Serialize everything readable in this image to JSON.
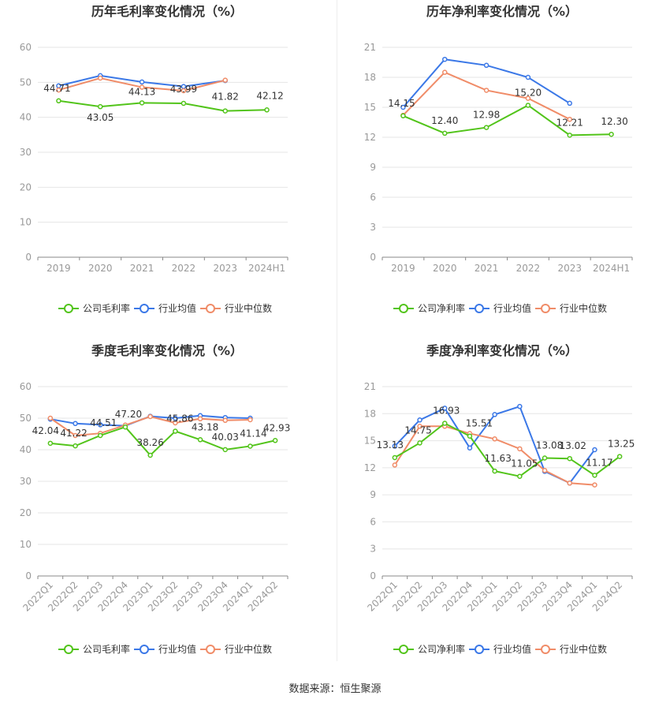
{
  "footer": {
    "source": "数据来源：恒生聚源"
  },
  "colors": {
    "company": "#52c41a",
    "industry_avg": "#3b78e7",
    "industry_median": "#f08c68",
    "grid": "#e6e6e6",
    "axis_text": "#999999",
    "title": "#333333"
  },
  "chart_data": [
    {
      "id": "annual-gross",
      "type": "line",
      "title": "历年毛利率变化情况（%）",
      "categories": [
        "2019",
        "2020",
        "2021",
        "2022",
        "2023",
        "2024H1"
      ],
      "ylim": [
        0,
        60
      ],
      "yticks": [
        0,
        10,
        20,
        30,
        40,
        50,
        60
      ],
      "legend": [
        "公司毛利率",
        "行业均值",
        "行业中位数"
      ],
      "series": [
        {
          "name": "公司毛利率",
          "role": "company",
          "values": [
            44.71,
            43.05,
            44.13,
            43.99,
            41.82,
            42.12
          ],
          "labels": [
            "44.71",
            "43.05",
            "44.13",
            "43.99",
            "41.82",
            "42.12"
          ]
        },
        {
          "name": "行业均值",
          "role": "industry_avg",
          "values": [
            49.0,
            51.9,
            50.1,
            48.8,
            50.5,
            null
          ]
        },
        {
          "name": "行业中位数",
          "role": "industry_median",
          "values": [
            47.8,
            51.2,
            48.6,
            47.6,
            50.6,
            null
          ]
        }
      ]
    },
    {
      "id": "annual-net",
      "type": "line",
      "title": "历年净利率变化情况（%）",
      "categories": [
        "2019",
        "2020",
        "2021",
        "2022",
        "2023",
        "2024H1"
      ],
      "ylim": [
        0,
        21
      ],
      "yticks": [
        0,
        3,
        6,
        9,
        12,
        15,
        18,
        21
      ],
      "legend": [
        "公司净利率",
        "行业均值",
        "行业中位数"
      ],
      "series": [
        {
          "name": "公司净利率",
          "role": "company",
          "values": [
            14.15,
            12.4,
            12.98,
            15.2,
            12.21,
            12.3
          ],
          "labels": [
            "14.15",
            "12.40",
            "12.98",
            "15.20",
            "12.21",
            "12.30"
          ]
        },
        {
          "name": "行业均值",
          "role": "industry_avg",
          "values": [
            15.0,
            19.8,
            19.2,
            18.0,
            15.4,
            null
          ]
        },
        {
          "name": "行业中位数",
          "role": "industry_median",
          "values": [
            14.2,
            18.5,
            16.7,
            15.9,
            13.8,
            null
          ]
        }
      ]
    },
    {
      "id": "quarterly-gross",
      "type": "line",
      "title": "季度毛利率变化情况（%）",
      "categories": [
        "2022Q1",
        "2022Q2",
        "2022Q3",
        "2022Q4",
        "2023Q1",
        "2023Q2",
        "2023Q3",
        "2023Q4",
        "2024Q1",
        "2024Q2"
      ],
      "ylim": [
        0,
        60
      ],
      "yticks": [
        0,
        10,
        20,
        30,
        40,
        50,
        60
      ],
      "rotate_xticks": true,
      "legend": [
        "公司毛利率",
        "行业均值",
        "行业中位数"
      ],
      "series": [
        {
          "name": "公司毛利率",
          "role": "company",
          "values": [
            42.04,
            41.22,
            44.51,
            47.2,
            38.26,
            45.86,
            43.18,
            40.03,
            41.14,
            42.93
          ],
          "labels": [
            "42.04",
            "41.22",
            "44.51",
            "47.20",
            "38.26",
            "45.86",
            "43.18",
            "40.03",
            "41.14",
            "42.93"
          ]
        },
        {
          "name": "行业均值",
          "role": "industry_avg",
          "values": [
            49.7,
            48.3,
            47.9,
            47.6,
            50.6,
            50.0,
            50.8,
            50.2,
            50.0,
            null
          ]
        },
        {
          "name": "行业中位数",
          "role": "industry_median",
          "values": [
            50.0,
            44.5,
            45.2,
            47.8,
            50.5,
            48.5,
            49.8,
            49.3,
            49.5,
            null
          ]
        }
      ]
    },
    {
      "id": "quarterly-net",
      "type": "line",
      "title": "季度净利率变化情况（%）",
      "categories": [
        "2022Q1",
        "2022Q2",
        "2022Q3",
        "2022Q4",
        "2023Q1",
        "2023Q2",
        "2023Q3",
        "2023Q4",
        "2024Q1",
        "2024Q2"
      ],
      "ylim": [
        0,
        21
      ],
      "yticks": [
        0,
        3,
        6,
        9,
        12,
        15,
        18,
        21
      ],
      "rotate_xticks": true,
      "legend": [
        "公司净利率",
        "行业均值",
        "行业中位数"
      ],
      "series": [
        {
          "name": "公司净利率",
          "role": "company",
          "values": [
            13.13,
            14.75,
            16.93,
            15.51,
            11.63,
            11.05,
            13.08,
            13.02,
            11.17,
            13.25
          ],
          "labels": [
            "13.13",
            "14.75",
            "16.93",
            "15.51",
            "11.63",
            "11.05",
            "13.08",
            "13.02",
            "11.17",
            "13.25"
          ]
        },
        {
          "name": "行业均值",
          "role": "industry_avg",
          "values": [
            14.4,
            17.3,
            18.6,
            14.2,
            17.9,
            18.8,
            11.6,
            10.3,
            14.0,
            null
          ]
        },
        {
          "name": "行业中位数",
          "role": "industry_median",
          "values": [
            12.3,
            16.6,
            16.6,
            15.8,
            15.2,
            14.1,
            11.7,
            10.3,
            10.1,
            null
          ]
        }
      ]
    }
  ]
}
